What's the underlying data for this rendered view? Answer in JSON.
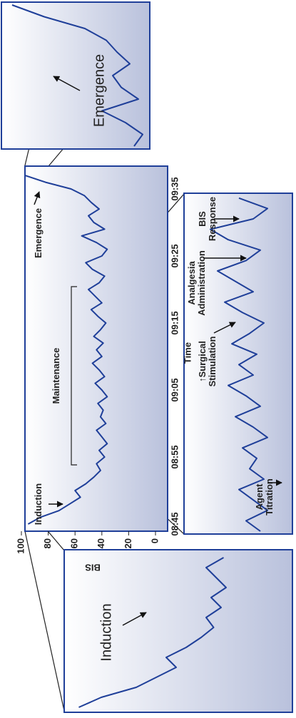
{
  "chart_data": {
    "type": "line",
    "x": [
      "08:45",
      "08:46",
      "08:47",
      "08:48",
      "08:49",
      "08:50",
      "08:51",
      "08:52",
      "08:53",
      "08:54",
      "08:55",
      "08:56",
      "08:57",
      "08:58",
      "08:59",
      "09:00",
      "09:01",
      "09:02",
      "09:03",
      "09:04",
      "09:05",
      "09:06",
      "09:07",
      "09:08",
      "09:09",
      "09:10",
      "09:11",
      "09:12",
      "09:13",
      "09:14",
      "09:15",
      "09:16",
      "09:17",
      "09:18",
      "09:19",
      "09:20",
      "09:21",
      "09:22",
      "09:23",
      "09:24",
      "09:25",
      "09:26",
      "09:27",
      "09:28",
      "09:29",
      "09:30",
      "09:31",
      "09:32",
      "09:33",
      "09:34",
      "09:35",
      "09:36",
      "09:37"
    ],
    "series": [
      {
        "color": "#1f3f99",
        "values": [
          95,
          86,
          72,
          64,
          56,
          60,
          52,
          46,
          41,
          44,
          38,
          42,
          36,
          40,
          44,
          37,
          41,
          39,
          43,
          36,
          40,
          45,
          38,
          42,
          47,
          40,
          44,
          39,
          46,
          41,
          37,
          43,
          48,
          40,
          45,
          50,
          42,
          38,
          47,
          52,
          40,
          36,
          44,
          55,
          38,
          46,
          50,
          42,
          48,
          53,
          63,
          82,
          97
        ]
      }
    ],
    "xlabel": "Time",
    "ylabel": "BIS",
    "ylim": [
      0,
      100
    ],
    "yticks": [
      0,
      20,
      40,
      60,
      80,
      100
    ],
    "xticks": [
      "08:45",
      "08:55",
      "09:05",
      "09:15",
      "09:25",
      "09:35"
    ],
    "annotations": {
      "main": [
        [
          "Induction"
        ],
        [
          "Maintenance"
        ],
        [
          "Emergence"
        ]
      ],
      "zoom_induction": [
        "Induction"
      ],
      "zoom_emergence": [
        "Emergence"
      ],
      "zoom_maintenance": [
        [
          "Agent",
          "Titration"
        ],
        [
          "↑Surgical",
          "Stimulation"
        ],
        [
          "Analgesia",
          "Administration"
        ],
        [
          "BIS",
          "Response"
        ]
      ]
    }
  }
}
